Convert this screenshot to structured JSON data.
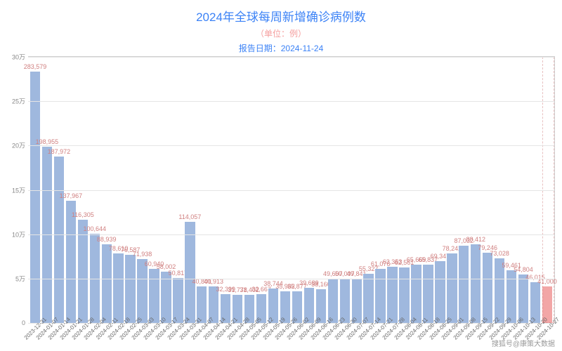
{
  "chart": {
    "type": "bar",
    "title": "2024年全球每周新增确诊病例数",
    "subtitle": "（单位：例）",
    "report_date_label": "报告日期：2024-11-24",
    "title_color": "#3b82f6",
    "subtitle_color": "#f59e9e",
    "report_date_color": "#3b82f6",
    "title_fontsize": 17,
    "subtitle_fontsize": 12,
    "background_color": "#ffffff",
    "grid_color": "#e5e5e5",
    "axis_color": "#d0d0d0",
    "y_axis": {
      "min": 0,
      "max": 300000,
      "ticks": [
        0,
        50000,
        100000,
        150000,
        200000,
        250000,
        300000
      ],
      "tick_labels": [
        "0",
        "5万",
        "10万",
        "15万",
        "20万",
        "25万",
        "30万"
      ],
      "label_fontsize": 9,
      "label_color": "#888888"
    },
    "x_axis": {
      "label_fontsize": 8,
      "label_color": "#666666",
      "rotation_deg": -45
    },
    "bar_color_default": "#9fb8de",
    "bar_color_highlight": "#f2a6a6",
    "bar_width_ratio": 0.9,
    "value_label_color": "#d08080",
    "value_label_fontsize": 9,
    "highlight_last_n": 1,
    "bars": [
      {
        "week": "2023-12-31",
        "value": 283579,
        "label": "283,579"
      },
      {
        "week": "2024-01-07",
        "value": 198955,
        "label": "198,955"
      },
      {
        "week": "2024-01-14",
        "value": 187972,
        "label": "187,972"
      },
      {
        "week": "2024-01-21",
        "value": 137967,
        "label": "137,967"
      },
      {
        "week": "2024-01-28",
        "value": 116305,
        "label": "116,305"
      },
      {
        "week": "2024-02-04",
        "value": 100644,
        "label": "100,644"
      },
      {
        "week": "2024-02-11",
        "value": 88939,
        "label": "88,939"
      },
      {
        "week": "2024-02-18",
        "value": 78610,
        "label": "78,610"
      },
      {
        "week": "2024-02-25",
        "value": 76587,
        "label": "76,587"
      },
      {
        "week": "2024-03-03",
        "value": 71938,
        "label": "71,938"
      },
      {
        "week": "2024-03-10",
        "value": 60940,
        "label": "60,940"
      },
      {
        "week": "2024-03-17",
        "value": 58002,
        "label": "58,002"
      },
      {
        "week": "2024-03-24",
        "value": 50817,
        "label": "50,817"
      },
      {
        "week": "2024-03-31",
        "value": 114057,
        "label": "114,057"
      },
      {
        "week": "2024-04-07",
        "value": 40801,
        "label": "40,801"
      },
      {
        "week": "2024-04-14",
        "value": 40913,
        "label": "40,913"
      },
      {
        "week": "2024-04-21",
        "value": 32399,
        "label": "32,399"
      },
      {
        "week": "2024-04-28",
        "value": 31778,
        "label": "31,778"
      },
      {
        "week": "2024-05-05",
        "value": 31402,
        "label": "31,402"
      },
      {
        "week": "2024-05-12",
        "value": 32667,
        "label": "32,667"
      },
      {
        "week": "2024-05-19",
        "value": 38744,
        "label": "38,744"
      },
      {
        "week": "2024-05-26",
        "value": 35962,
        "label": "35,962"
      },
      {
        "week": "2024-06-02",
        "value": 35877,
        "label": "35,877"
      },
      {
        "week": "2024-06-09",
        "value": 39689,
        "label": "39,689"
      },
      {
        "week": "2024-06-16",
        "value": 38160,
        "label": "38,160"
      },
      {
        "week": "2024-06-23",
        "value": 49607,
        "label": "49,607"
      },
      {
        "week": "2024-06-30",
        "value": 50007,
        "label": "50,007"
      },
      {
        "week": "2024-07-07",
        "value": 49841,
        "label": "49,841"
      },
      {
        "week": "2024-07-14",
        "value": 55327,
        "label": "55,327"
      },
      {
        "week": "2024-07-21",
        "value": 61076,
        "label": "61,076"
      },
      {
        "week": "2024-07-28",
        "value": 63353,
        "label": "63,353"
      },
      {
        "week": "2024-08-04",
        "value": 62561,
        "label": "62,561"
      },
      {
        "week": "2024-08-11",
        "value": 65669,
        "label": "65,669"
      },
      {
        "week": "2024-08-18",
        "value": 65837,
        "label": "65,837"
      },
      {
        "week": "2024-08-25",
        "value": 69347,
        "label": "69,347"
      },
      {
        "week": "2024-09-01",
        "value": 78242,
        "label": "78,242"
      },
      {
        "week": "2024-09-08",
        "value": 87032,
        "label": "87,032"
      },
      {
        "week": "2024-09-15",
        "value": 88412,
        "label": "88,412"
      },
      {
        "week": "2024-09-22",
        "value": 79246,
        "label": "79,246"
      },
      {
        "week": "2024-09-29",
        "value": 73028,
        "label": "73,028"
      },
      {
        "week": "2024-10-06",
        "value": 59461,
        "label": "59,461"
      },
      {
        "week": "2024-10-13",
        "value": 54804,
        "label": "54,804"
      },
      {
        "week": "2024-10-20",
        "value": 46015,
        "label": "46,015"
      },
      {
        "week": "2024-10-27",
        "value": 41000,
        "label": "41,000",
        "highlight": true
      }
    ],
    "watermark": "搜狐号@康策大数据"
  }
}
